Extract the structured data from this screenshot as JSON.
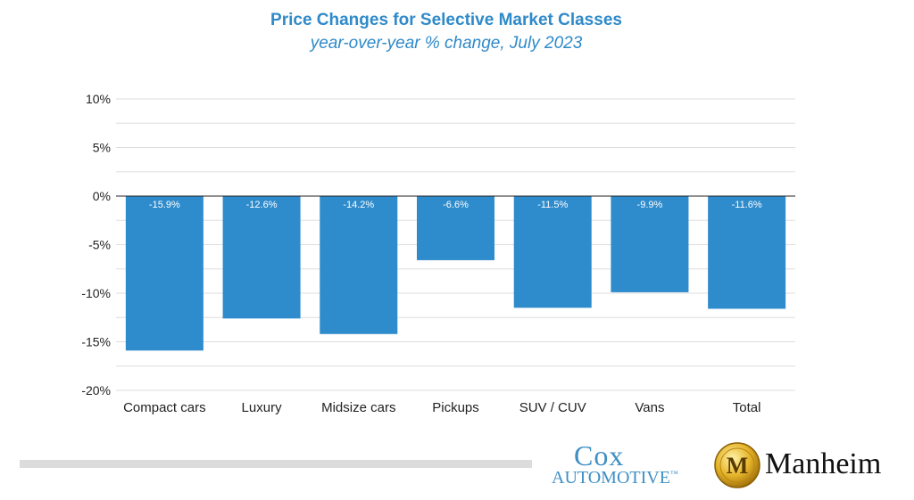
{
  "chart_data": {
    "type": "bar",
    "title": "Price Changes for Selective Market Classes",
    "subtitle": "year-over-year % change, July 2023",
    "categories": [
      "Compact cars",
      "Luxury",
      "Midsize cars",
      "Pickups",
      "SUV / CUV",
      "Vans",
      "Total"
    ],
    "values": [
      -15.9,
      -12.6,
      -14.2,
      -6.6,
      -11.5,
      -9.9,
      -11.6
    ],
    "data_labels": [
      "-15.9%",
      "-12.6%",
      "-14.2%",
      "-6.6%",
      "-11.5%",
      "-9.9%",
      "-11.6%"
    ],
    "ylim": [
      -20,
      10
    ],
    "yticks": [
      10,
      5,
      0,
      -5,
      -10,
      -15,
      -20
    ],
    "ytick_labels": [
      "10%",
      "5%",
      "0%",
      "-5%",
      "-10%",
      "-15%",
      "-20%"
    ],
    "xlabel": "",
    "ylabel": "",
    "grid": true,
    "bar_color": "#2e8bcc",
    "title_color": "#2f8ac9"
  },
  "logos": {
    "cox": {
      "top": "Cox",
      "bottom": "AUTOMOTIVE",
      "mark": "™"
    },
    "manheim": {
      "letter": "M",
      "word": "Manheim"
    }
  }
}
